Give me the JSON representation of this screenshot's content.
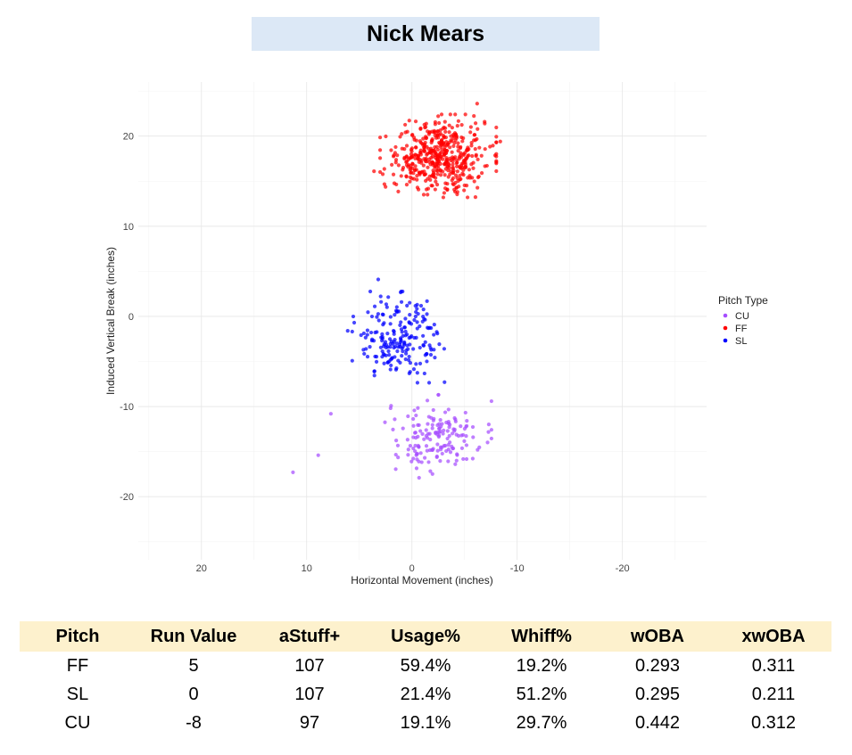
{
  "title": "Nick Mears",
  "chart_data": {
    "type": "scatter",
    "title": "Nick Mears",
    "xlabel": "Horizontal Movement (inches)",
    "ylabel": "Induced Vertical Break (inches)",
    "xlim": [
      26,
      -28
    ],
    "ylim": [
      -27,
      26
    ],
    "x_axis_reversed": true,
    "x_ticks": [
      20,
      10,
      0,
      -10,
      -20
    ],
    "x_tick_labels": [
      "20",
      "10",
      "0",
      "-10",
      "-20"
    ],
    "y_ticks": [
      20,
      10,
      0,
      -10,
      -20
    ],
    "y_tick_labels": [
      "20",
      "10",
      "0",
      "-10",
      "-20"
    ],
    "grid": true,
    "legend": {
      "title": "Pitch Type",
      "position": "right"
    },
    "series": [
      {
        "name": "CU",
        "color": "#a64dff",
        "center": [
          -2.5,
          -13.3
        ],
        "spread": [
          2.2,
          2.0
        ],
        "count": 160,
        "outliers": [
          [
            11.3,
            -17.3
          ],
          [
            8.9,
            -15.4
          ],
          [
            7.7,
            -10.8
          ]
        ]
      },
      {
        "name": "FF",
        "color": "#ff0000",
        "center": [
          -2.5,
          17.8
        ],
        "spread": [
          2.4,
          2.0
        ],
        "count": 480,
        "outliers": [
          [
            3.6,
            16.1
          ],
          [
            -6.2,
            23.6
          ],
          [
            -8.4,
            19.4
          ]
        ]
      },
      {
        "name": "SL",
        "color": "#0000ff",
        "center": [
          1.3,
          -2.3
        ],
        "spread": [
          1.9,
          2.2
        ],
        "count": 200,
        "outliers": [
          [
            6.1,
            -1.6
          ],
          [
            3.2,
            4.1
          ],
          [
            -3.1,
            -7.3
          ]
        ]
      }
    ]
  },
  "table": {
    "headers": [
      "Pitch",
      "Run Value",
      "aStuff+",
      "Usage%",
      "Whiff%",
      "wOBA",
      "xwOBA"
    ],
    "rows": [
      [
        "FF",
        "5",
        "107",
        "59.4%",
        "19.2%",
        "0.293",
        "0.311"
      ],
      [
        "SL",
        "0",
        "107",
        "21.4%",
        "51.2%",
        "0.295",
        "0.211"
      ],
      [
        "CU",
        "-8",
        "97",
        "19.1%",
        "29.7%",
        "0.442",
        "0.312"
      ]
    ]
  }
}
